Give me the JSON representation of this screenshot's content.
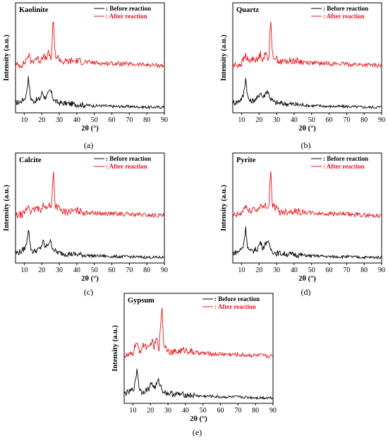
{
  "figure": {
    "panels": [
      {
        "id": "a",
        "caption": "(a)",
        "mineral": "Kaolinite"
      },
      {
        "id": "b",
        "caption": "(b)",
        "mineral": "Quartz"
      },
      {
        "id": "c",
        "caption": "(c)",
        "mineral": "Calcite"
      },
      {
        "id": "d",
        "caption": "(d)",
        "mineral": "Pyrite"
      },
      {
        "id": "e",
        "caption": "(e)",
        "mineral": "Gypsum"
      }
    ]
  },
  "colors": {
    "before": "#000000",
    "after": "#e8141a"
  },
  "chart_data": [
    {
      "type": "line",
      "title": "Kaolinite",
      "xlabel": "2θ (°)",
      "ylabel": "Intensity (a.u.)",
      "xlim": [
        5,
        90
      ],
      "xticks": [
        10,
        20,
        30,
        40,
        50,
        60,
        70,
        80,
        90
      ],
      "legend": "top-right",
      "series": [
        {
          "name": ": Before reaction",
          "x": [
            5,
            8,
            10,
            11,
            12.4,
            13.5,
            15,
            17,
            19,
            20.3,
            21.5,
            23,
            24.9,
            26.6,
            28,
            30,
            35,
            40,
            45,
            50,
            55,
            60,
            70,
            80,
            90
          ],
          "y": [
            12,
            14,
            18,
            22,
            48,
            20,
            14,
            16,
            18,
            28,
            20,
            22,
            30,
            18,
            14,
            12,
            11,
            10,
            9,
            8,
            8,
            7,
            7,
            6,
            6
          ]
        },
        {
          "name": ": After reaction",
          "x": [
            5,
            8,
            10,
            12.4,
            14,
            17,
            19,
            20.8,
            22,
            24,
            25.5,
            26.6,
            27.5,
            29.5,
            32,
            35,
            40,
            45,
            50,
            55,
            60,
            70,
            80,
            90
          ],
          "y": [
            65,
            66,
            68,
            80,
            70,
            76,
            72,
            80,
            74,
            82,
            74,
            135,
            80,
            76,
            70,
            71,
            72,
            70,
            69,
            68,
            68,
            67,
            66,
            65
          ]
        }
      ]
    },
    {
      "type": "line",
      "title": "Quartz",
      "xlabel": "2θ (°)",
      "ylabel": "Intensity (a.u.)",
      "xlim": [
        5,
        90
      ],
      "xticks": [
        10,
        20,
        30,
        40,
        50,
        60,
        70,
        80,
        90
      ],
      "legend": "top-right",
      "series": [
        {
          "name": ": Before reaction",
          "x": [
            5,
            8,
            10,
            11,
            12.4,
            13.5,
            15,
            17,
            19,
            20.8,
            22,
            23,
            24.6,
            26.6,
            28,
            30,
            35,
            40,
            45,
            50,
            55,
            60,
            70,
            80,
            90
          ],
          "y": [
            12,
            14,
            18,
            22,
            48,
            20,
            14,
            16,
            18,
            28,
            20,
            22,
            30,
            18,
            14,
            12,
            11,
            10,
            9,
            8,
            8,
            7,
            7,
            6,
            6
          ]
        },
        {
          "name": ": After reaction",
          "x": [
            5,
            8,
            10,
            12.4,
            14,
            17,
            19,
            20.8,
            22,
            24,
            25.5,
            26.6,
            27.5,
            29.5,
            32,
            35,
            40,
            45,
            50,
            55,
            60,
            70,
            80,
            90
          ],
          "y": [
            65,
            66,
            68,
            80,
            70,
            76,
            72,
            82,
            74,
            82,
            74,
            135,
            80,
            76,
            70,
            71,
            72,
            70,
            69,
            68,
            68,
            67,
            66,
            65
          ]
        }
      ]
    },
    {
      "type": "line",
      "title": "Calcite",
      "xlabel": "2θ (°)",
      "ylabel": "Intensity (a.u.)",
      "xlim": [
        5,
        90
      ],
      "xticks": [
        10,
        20,
        30,
        40,
        50,
        60,
        70,
        80,
        90
      ],
      "legend": "top-right",
      "series": [
        {
          "name": ": Before reaction",
          "x": [
            5,
            8,
            10,
            11,
            12.4,
            13.5,
            15,
            17,
            19,
            20.8,
            22,
            23,
            24.6,
            26.6,
            28,
            30,
            35,
            40,
            45,
            50,
            55,
            60,
            70,
            80,
            90
          ],
          "y": [
            12,
            14,
            18,
            22,
            48,
            20,
            14,
            16,
            18,
            28,
            20,
            22,
            30,
            18,
            14,
            12,
            11,
            10,
            9,
            8,
            8,
            7,
            7,
            6,
            6
          ]
        },
        {
          "name": ": After reaction",
          "x": [
            5,
            8,
            10,
            12.4,
            14,
            17,
            19,
            20.8,
            22,
            24,
            25.5,
            26.6,
            27.5,
            29.5,
            32,
            35,
            40,
            45,
            50,
            55,
            60,
            70,
            80,
            90
          ],
          "y": [
            65,
            66,
            68,
            80,
            70,
            76,
            72,
            82,
            74,
            82,
            74,
            135,
            80,
            76,
            70,
            71,
            72,
            70,
            69,
            68,
            68,
            67,
            66,
            65
          ]
        }
      ]
    },
    {
      "type": "line",
      "title": "Pyrite",
      "xlabel": "2θ (°)",
      "ylabel": "Intensity (a.u.)",
      "xlim": [
        5,
        90
      ],
      "xticks": [
        10,
        20,
        30,
        40,
        50,
        60,
        70,
        80,
        90
      ],
      "legend": "top-right",
      "series": [
        {
          "name": ": Before reaction",
          "x": [
            5,
            8,
            10,
            11,
            12.4,
            13.5,
            15,
            17,
            19,
            20.8,
            22,
            23,
            24.6,
            26.6,
            28,
            30,
            35,
            40,
            45,
            50,
            55,
            60,
            70,
            80,
            90
          ],
          "y": [
            12,
            14,
            18,
            22,
            48,
            20,
            14,
            16,
            18,
            28,
            20,
            22,
            30,
            18,
            14,
            12,
            11,
            10,
            9,
            8,
            8,
            7,
            7,
            6,
            6
          ]
        },
        {
          "name": ": After reaction",
          "x": [
            5,
            8,
            10,
            12.4,
            14,
            17,
            19,
            20.8,
            22,
            24,
            25.5,
            26.6,
            27.5,
            29.5,
            32,
            35,
            40,
            45,
            50,
            55,
            60,
            70,
            80,
            90
          ],
          "y": [
            65,
            66,
            68,
            80,
            70,
            76,
            72,
            82,
            74,
            82,
            74,
            135,
            80,
            76,
            70,
            71,
            72,
            70,
            69,
            68,
            68,
            67,
            66,
            65
          ]
        }
      ]
    },
    {
      "type": "line",
      "title": "Gypsum",
      "xlabel": "2θ (°)",
      "ylabel": "Intensity (a.u.)",
      "xlim": [
        5,
        90
      ],
      "xticks": [
        10,
        20,
        30,
        40,
        50,
        60,
        70,
        80,
        90
      ],
      "legend": "top-right",
      "series": [
        {
          "name": ": Before reaction",
          "x": [
            5,
            8,
            10,
            11,
            12.4,
            13.5,
            15,
            17,
            19,
            20.8,
            22,
            23,
            24.6,
            26.6,
            28,
            30,
            35,
            40,
            45,
            50,
            55,
            60,
            70,
            80,
            90
          ],
          "y": [
            12,
            14,
            18,
            22,
            48,
            20,
            14,
            16,
            18,
            28,
            20,
            22,
            30,
            18,
            14,
            12,
            11,
            10,
            9,
            8,
            8,
            7,
            7,
            6,
            6
          ]
        },
        {
          "name": ": After reaction",
          "x": [
            5,
            8,
            10,
            11.6,
            14,
            16.5,
            19,
            20.8,
            22,
            23.5,
            25,
            26.6,
            27.5,
            29.5,
            32,
            35,
            40,
            45,
            50,
            55,
            60,
            70,
            80,
            90
          ],
          "y": [
            65,
            66,
            68,
            84,
            72,
            82,
            74,
            88,
            76,
            90,
            76,
            140,
            82,
            76,
            70,
            71,
            74,
            70,
            69,
            68,
            68,
            67,
            66,
            65
          ]
        }
      ]
    }
  ]
}
